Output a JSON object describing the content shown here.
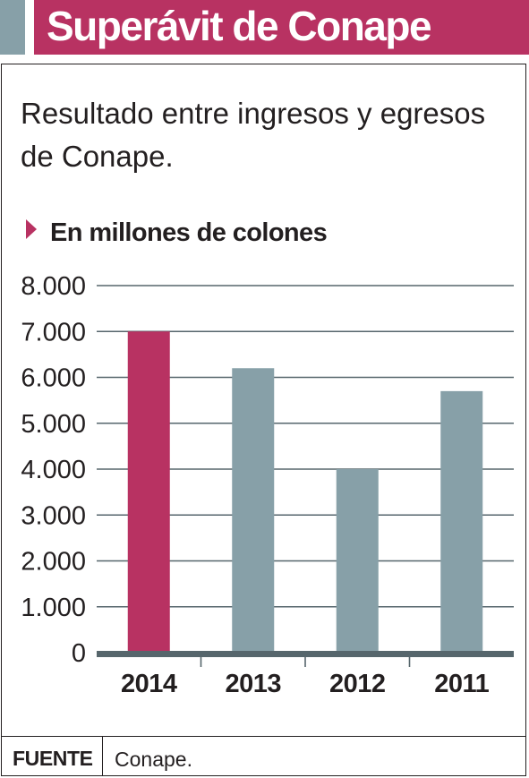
{
  "header": {
    "title": "Superávit de Conape"
  },
  "subtitle": "Resultado entre ingresos y egresos de Conape.",
  "unit_label": "En millones de colones",
  "source": {
    "label": "FUENTE",
    "value": "Conape."
  },
  "colors": {
    "accent": "#b83262",
    "bar_default": "#87a0a8",
    "side_block": "#87a0a8",
    "text": "#231f20"
  },
  "chart_data": {
    "type": "bar",
    "title": "",
    "xlabel": "",
    "ylabel": "",
    "categories": [
      "2014",
      "2013",
      "2012",
      "2011"
    ],
    "values": [
      7000,
      6200,
      4000,
      5700
    ],
    "highlight_index": 0,
    "ylim": [
      0,
      8000
    ],
    "yticks": [
      0,
      1000,
      2000,
      3000,
      4000,
      5000,
      6000,
      7000,
      8000
    ],
    "ytick_labels": [
      "0",
      "1.000",
      "2.000",
      "3.000",
      "4.000",
      "5.000",
      "6.000",
      "7.000",
      "8.000"
    ],
    "grid": true,
    "legend": "none"
  }
}
